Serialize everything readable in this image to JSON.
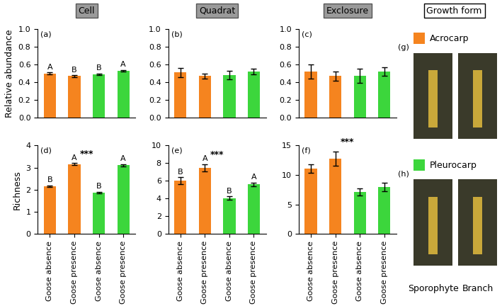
{
  "chart_data": [
    {
      "type": "bar",
      "title": "(a)",
      "y_label": "Relative abundance",
      "categories": [
        "Goose absence",
        "Goose presence",
        "Goose absence",
        "Goose presence"
      ],
      "values": [
        0.5,
        0.47,
        0.49,
        0.53
      ],
      "errors": [
        0.01,
        0.01,
        0.01,
        0.01
      ],
      "colors": [
        "#F5841F",
        "#F5841F",
        "#3CD63C",
        "#3CD63C"
      ],
      "letters": [
        "A",
        "B",
        "B",
        "A"
      ],
      "annotations": [],
      "ylim": [
        0,
        1.0
      ],
      "yticks": [
        {
          "value": 0,
          "label": "0.0"
        },
        {
          "value": 0.2,
          "label": "0.2"
        },
        {
          "value": 0.4,
          "label": "0.4"
        },
        {
          "value": 0.6,
          "label": "0.6"
        },
        {
          "value": 0.8,
          "label": "0.8"
        },
        {
          "value": 1.0,
          "label": "1.0"
        }
      ],
      "grid": false,
      "tick_labels": "y"
    },
    {
      "type": "bar",
      "title": "(b)",
      "categories": [
        "Goose absence",
        "Goose presence",
        "Goose absence",
        "Goose presence"
      ],
      "values": [
        0.51,
        0.47,
        0.48,
        0.52
      ],
      "errors": [
        0.05,
        0.03,
        0.05,
        0.03
      ],
      "colors": [
        "#F5841F",
        "#F5841F",
        "#3CD63C",
        "#3CD63C"
      ],
      "letters": [],
      "annotations": [],
      "ylim": [
        0,
        1.0
      ],
      "yticks": [
        {
          "value": 0,
          "label": "0.0"
        },
        {
          "value": 0.2,
          "label": "0.2"
        },
        {
          "value": 0.4,
          "label": "0.4"
        },
        {
          "value": 0.6,
          "label": "0.6"
        },
        {
          "value": 0.8,
          "label": "0.8"
        },
        {
          "value": 1.0,
          "label": "1.0"
        }
      ],
      "grid": false,
      "tick_labels": "y"
    },
    {
      "type": "bar",
      "title": "(c)",
      "categories": [
        "Goose absence",
        "Goose presence",
        "Goose absence",
        "Goose presence"
      ],
      "values": [
        0.52,
        0.47,
        0.47,
        0.52
      ],
      "errors": [
        0.08,
        0.05,
        0.08,
        0.05
      ],
      "colors": [
        "#F5841F",
        "#F5841F",
        "#3CD63C",
        "#3CD63C"
      ],
      "letters": [],
      "annotations": [],
      "ylim": [
        0,
        1.0
      ],
      "yticks": [
        {
          "value": 0,
          "label": "0.0"
        },
        {
          "value": 0.2,
          "label": "0.2"
        },
        {
          "value": 0.4,
          "label": "0.4"
        },
        {
          "value": 0.6,
          "label": "0.6"
        },
        {
          "value": 0.8,
          "label": "0.8"
        },
        {
          "value": 1.0,
          "label": "1.0"
        }
      ],
      "grid": false,
      "tick_labels": "y"
    },
    {
      "type": "bar",
      "title": "(d)",
      "y_label": "Richness",
      "categories": [
        "Goose absence",
        "Goose presence",
        "Goose absence",
        "Goose presence"
      ],
      "values": [
        2.15,
        3.15,
        1.88,
        3.1
      ],
      "errors": [
        0.04,
        0.05,
        0.03,
        0.05
      ],
      "colors": [
        "#F5841F",
        "#F5841F",
        "#3CD63C",
        "#3CD63C"
      ],
      "letters": [
        "B",
        "A",
        "B",
        "A"
      ],
      "annotations": [
        "***"
      ],
      "ylim": [
        0,
        4
      ],
      "yticks": [
        0,
        1,
        2,
        3,
        4
      ],
      "grid": false
    },
    {
      "type": "bar",
      "title": "(e)",
      "categories": [
        "Goose absence",
        "Goose presence",
        "Goose absence",
        "Goose presence"
      ],
      "values": [
        6.0,
        7.5,
        4.05,
        5.6
      ],
      "errors": [
        0.4,
        0.4,
        0.2,
        0.2
      ],
      "colors": [
        "#F5841F",
        "#F5841F",
        "#3CD63C",
        "#3CD63C"
      ],
      "letters": [
        "B",
        "A",
        "B",
        "A"
      ],
      "annotations": [
        "***"
      ],
      "ylim": [
        0,
        10
      ],
      "yticks": [
        0,
        2,
        4,
        6,
        8,
        10
      ],
      "grid": false
    },
    {
      "type": "bar",
      "title": "(f)",
      "categories": [
        "Goose absence",
        "Goose presence",
        "Goose absence",
        "Goose presence"
      ],
      "values": [
        11.1,
        12.8,
        7.1,
        8.0
      ],
      "errors": [
        0.7,
        1.2,
        0.6,
        0.7
      ],
      "colors": [
        "#F5841F",
        "#F5841F",
        "#3CD63C",
        "#3CD63C"
      ],
      "letters": [],
      "annotations": [
        "***"
      ],
      "ylim": [
        0,
        15
      ],
      "yticks": [
        0,
        5,
        10,
        15
      ],
      "grid": false
    }
  ],
  "column_headers": [
    "Cell",
    "Quadrat",
    "Exclosure"
  ],
  "growth_form": {
    "title": "Growth form",
    "items": [
      {
        "name": "Acrocarp",
        "color": "#F5841F",
        "panel": "(g)"
      },
      {
        "name": "Pleurocarp",
        "color": "#3CD63C",
        "panel": "(h)"
      }
    ],
    "image_labels": [
      "Sporophyte",
      "Branch"
    ]
  }
}
